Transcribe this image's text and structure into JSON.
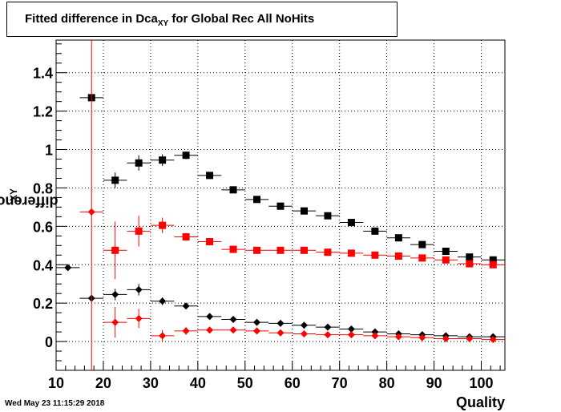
{
  "page": {
    "title_prefix": "Fitted difference in Dca",
    "title_sub": "XY",
    "title_suffix": " for Global Rec All NoHits",
    "ylabel_prefix": "difference in Dca",
    "ylabel_sub": "XY",
    "xlabel": "Quality",
    "timestamp": "Wed May 23 11:15:29 2018"
  },
  "chart_data": {
    "type": "scatter",
    "xlim": [
      10,
      105
    ],
    "ylim": [
      -0.15,
      1.57
    ],
    "xticks": [
      10,
      20,
      30,
      40,
      50,
      60,
      70,
      80,
      90,
      100
    ],
    "yticks": [
      0,
      0.2,
      0.4,
      0.6,
      0.8,
      1,
      1.2,
      1.4
    ],
    "xtick_labels": [
      "10",
      "20",
      "30",
      "40",
      "50",
      "60",
      "70",
      "80",
      "90",
      "100"
    ],
    "ytick_labels": [
      "0",
      "0.2",
      "0.4",
      "0.6",
      "0.8",
      "1",
      "1.2",
      "1.4"
    ],
    "grid": true,
    "bin_half_width": 2.5,
    "series": [
      {
        "marker": "square",
        "color": "#000000",
        "points": [
          {
            "x": 17.5,
            "y": 1.27,
            "err": 0.0
          },
          {
            "x": 22.5,
            "y": 0.84,
            "err": 0.04
          },
          {
            "x": 27.5,
            "y": 0.93,
            "err": 0.04
          },
          {
            "x": 32.5,
            "y": 0.945,
            "err": 0.03
          },
          {
            "x": 37.5,
            "y": 0.97,
            "err": 0.02
          },
          {
            "x": 42.5,
            "y": 0.865,
            "err": 0.01
          },
          {
            "x": 47.5,
            "y": 0.79,
            "err": 0.01
          },
          {
            "x": 52.5,
            "y": 0.74,
            "err": 0.01
          },
          {
            "x": 57.5,
            "y": 0.705,
            "err": 0.01
          },
          {
            "x": 62.5,
            "y": 0.68,
            "err": 0.01
          },
          {
            "x": 67.5,
            "y": 0.655,
            "err": 0.01
          },
          {
            "x": 72.5,
            "y": 0.62,
            "err": 0.01
          },
          {
            "x": 77.5,
            "y": 0.575,
            "err": 0.01
          },
          {
            "x": 82.5,
            "y": 0.54,
            "err": 0.01
          },
          {
            "x": 87.5,
            "y": 0.505,
            "err": 0.01
          },
          {
            "x": 92.5,
            "y": 0.47,
            "err": 0.01
          },
          {
            "x": 97.5,
            "y": 0.44,
            "err": 0.01
          },
          {
            "x": 102.5,
            "y": 0.425,
            "err": 0.01
          }
        ]
      },
      {
        "marker": "square",
        "color": "#ff0000",
        "points": [
          {
            "x": 22.5,
            "y": 0.475,
            "err": 0.15
          },
          {
            "x": 27.5,
            "y": 0.575,
            "err": 0.08
          },
          {
            "x": 32.5,
            "y": 0.605,
            "err": 0.04
          },
          {
            "x": 37.5,
            "y": 0.545,
            "err": 0.02
          },
          {
            "x": 42.5,
            "y": 0.52,
            "err": 0.01
          },
          {
            "x": 47.5,
            "y": 0.48,
            "err": 0.01
          },
          {
            "x": 52.5,
            "y": 0.475,
            "err": 0.01
          },
          {
            "x": 57.5,
            "y": 0.475,
            "err": 0.01
          },
          {
            "x": 62.5,
            "y": 0.475,
            "err": 0.01
          },
          {
            "x": 67.5,
            "y": 0.465,
            "err": 0.01
          },
          {
            "x": 72.5,
            "y": 0.46,
            "err": 0.01
          },
          {
            "x": 77.5,
            "y": 0.45,
            "err": 0.01
          },
          {
            "x": 82.5,
            "y": 0.445,
            "err": 0.01
          },
          {
            "x": 87.5,
            "y": 0.435,
            "err": 0.01
          },
          {
            "x": 92.5,
            "y": 0.425,
            "err": 0.01
          },
          {
            "x": 97.5,
            "y": 0.405,
            "err": 0.01
          },
          {
            "x": 102.5,
            "y": 0.4,
            "err": 0.01
          }
        ]
      },
      {
        "marker": "diamond",
        "color": "#000000",
        "points": [
          {
            "x": 12.5,
            "y": 0.385,
            "err": 0.0
          },
          {
            "x": 17.5,
            "y": 0.225,
            "err": 0.0
          },
          {
            "x": 22.5,
            "y": 0.245,
            "err": 0.03
          },
          {
            "x": 27.5,
            "y": 0.27,
            "err": 0.03
          },
          {
            "x": 32.5,
            "y": 0.21,
            "err": 0.02
          },
          {
            "x": 37.5,
            "y": 0.185,
            "err": 0.01
          },
          {
            "x": 42.5,
            "y": 0.13,
            "err": 0.01
          },
          {
            "x": 47.5,
            "y": 0.115,
            "err": 0.01
          },
          {
            "x": 52.5,
            "y": 0.1,
            "err": 0.01
          },
          {
            "x": 57.5,
            "y": 0.095,
            "err": 0.01
          },
          {
            "x": 62.5,
            "y": 0.085,
            "err": 0.01
          },
          {
            "x": 67.5,
            "y": 0.075,
            "err": 0.01
          },
          {
            "x": 72.5,
            "y": 0.065,
            "err": 0.01
          },
          {
            "x": 77.5,
            "y": 0.05,
            "err": 0.01
          },
          {
            "x": 82.5,
            "y": 0.04,
            "err": 0.01
          },
          {
            "x": 87.5,
            "y": 0.035,
            "err": 0.01
          },
          {
            "x": 92.5,
            "y": 0.03,
            "err": 0.01
          },
          {
            "x": 97.5,
            "y": 0.025,
            "err": 0.01
          },
          {
            "x": 102.5,
            "y": 0.025,
            "err": 0.01
          }
        ]
      },
      {
        "marker": "diamond",
        "color": "#ff0000",
        "points": [
          {
            "x": 17.5,
            "y": 0.675,
            "err": 1.0
          },
          {
            "x": 22.5,
            "y": 0.1,
            "err": 0.08
          },
          {
            "x": 27.5,
            "y": 0.12,
            "err": 0.05
          },
          {
            "x": 32.5,
            "y": 0.03,
            "err": 0.03
          },
          {
            "x": 37.5,
            "y": 0.055,
            "err": 0.02
          },
          {
            "x": 42.5,
            "y": 0.06,
            "err": 0.01
          },
          {
            "x": 47.5,
            "y": 0.06,
            "err": 0.01
          },
          {
            "x": 52.5,
            "y": 0.055,
            "err": 0.01
          },
          {
            "x": 57.5,
            "y": 0.045,
            "err": 0.01
          },
          {
            "x": 62.5,
            "y": 0.04,
            "err": 0.01
          },
          {
            "x": 67.5,
            "y": 0.035,
            "err": 0.01
          },
          {
            "x": 72.5,
            "y": 0.035,
            "err": 0.01
          },
          {
            "x": 77.5,
            "y": 0.03,
            "err": 0.01
          },
          {
            "x": 82.5,
            "y": 0.025,
            "err": 0.01
          },
          {
            "x": 87.5,
            "y": 0.02,
            "err": 0.01
          },
          {
            "x": 92.5,
            "y": 0.015,
            "err": 0.01
          },
          {
            "x": 97.5,
            "y": 0.015,
            "err": 0.01
          },
          {
            "x": 102.5,
            "y": 0.01,
            "err": 0.01
          }
        ]
      }
    ]
  }
}
